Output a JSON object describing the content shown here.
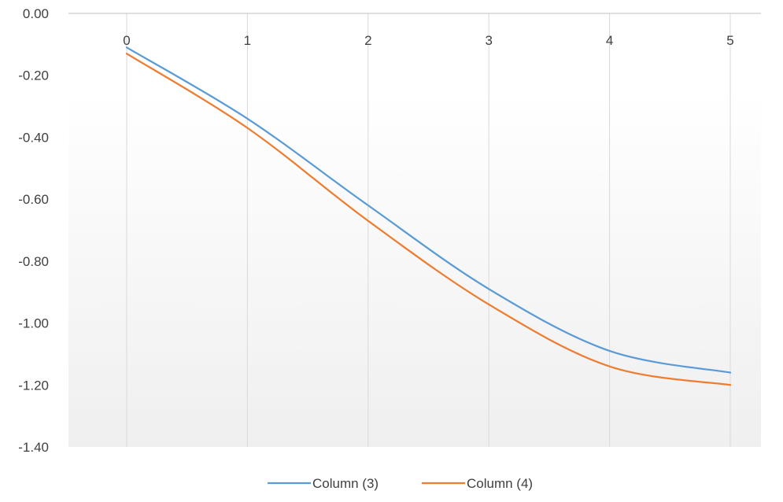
{
  "chart_data": {
    "type": "line",
    "title": "",
    "xlabel": "",
    "ylabel": "",
    "x": [
      0,
      1,
      2,
      3,
      4,
      5
    ],
    "xlim": [
      0,
      5
    ],
    "ylim": [
      -1.4,
      0.0
    ],
    "y_ticks": [
      "0.00",
      "-0.20",
      "-0.40",
      "-0.60",
      "-0.80",
      "-1.00",
      "-1.20",
      "-1.40"
    ],
    "x_ticks": [
      "0",
      "1",
      "2",
      "3",
      "4",
      "5"
    ],
    "x_axis_position": "top",
    "grid": "vertical",
    "legend_position": "bottom",
    "series": [
      {
        "name": "Column (3)",
        "color": "#5B9BD5",
        "values": [
          -0.11,
          -0.34,
          -0.62,
          -0.89,
          -1.09,
          -1.16
        ]
      },
      {
        "name": "Column (4)",
        "color": "#ED7D31",
        "values": [
          -0.13,
          -0.37,
          -0.67,
          -0.94,
          -1.14,
          -1.2
        ]
      }
    ]
  }
}
